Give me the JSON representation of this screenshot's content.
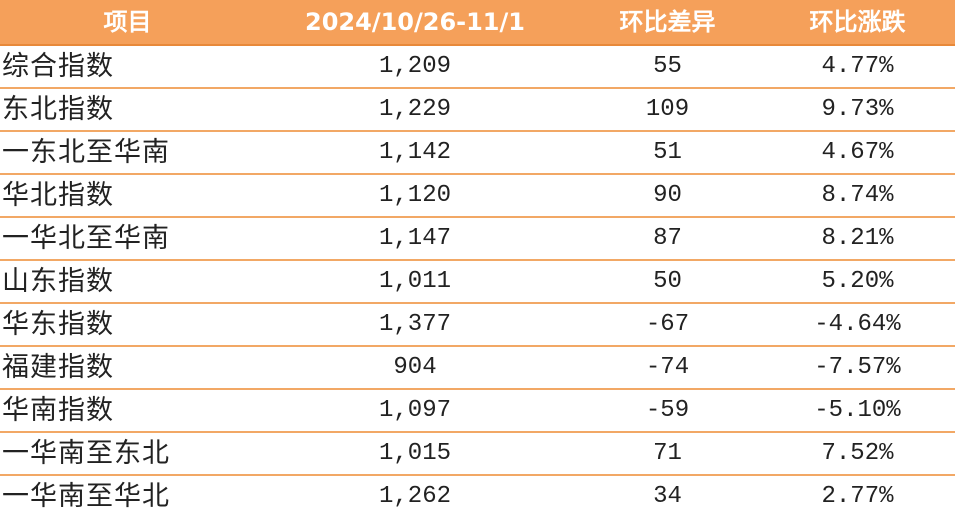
{
  "table": {
    "headers": [
      "项目",
      "2024/10/26-11/1",
      "环比差异",
      "环比涨跌"
    ],
    "rows": [
      {
        "name": "综合指数",
        "value": "1,209",
        "diff": "55",
        "pct": "4.77%"
      },
      {
        "name": "东北指数",
        "value": "1,229",
        "diff": "109",
        "pct": "9.73%"
      },
      {
        "name": "一东北至华南",
        "value": "1,142",
        "diff": "51",
        "pct": "4.67%"
      },
      {
        "name": "华北指数",
        "value": "1,120",
        "diff": "90",
        "pct": "8.74%"
      },
      {
        "name": "一华北至华南",
        "value": "1,147",
        "diff": "87",
        "pct": "8.21%"
      },
      {
        "name": "山东指数",
        "value": "1,011",
        "diff": "50",
        "pct": "5.20%"
      },
      {
        "name": "华东指数",
        "value": "1,377",
        "diff": "-67",
        "pct": "-4.64%"
      },
      {
        "name": "福建指数",
        "value": "904",
        "diff": "-74",
        "pct": "-7.57%"
      },
      {
        "name": "华南指数",
        "value": "1,097",
        "diff": "-59",
        "pct": "-5.10%"
      },
      {
        "name": "一华南至东北",
        "value": "1,015",
        "diff": "71",
        "pct": "7.52%"
      },
      {
        "name": "一华南至华北",
        "value": "1,262",
        "diff": "34",
        "pct": "2.77%"
      }
    ]
  },
  "colors": {
    "header_bg": "#f5a05a",
    "row_divider": "#f2a865",
    "header_text": "#ffffff",
    "body_text": "#222222"
  }
}
